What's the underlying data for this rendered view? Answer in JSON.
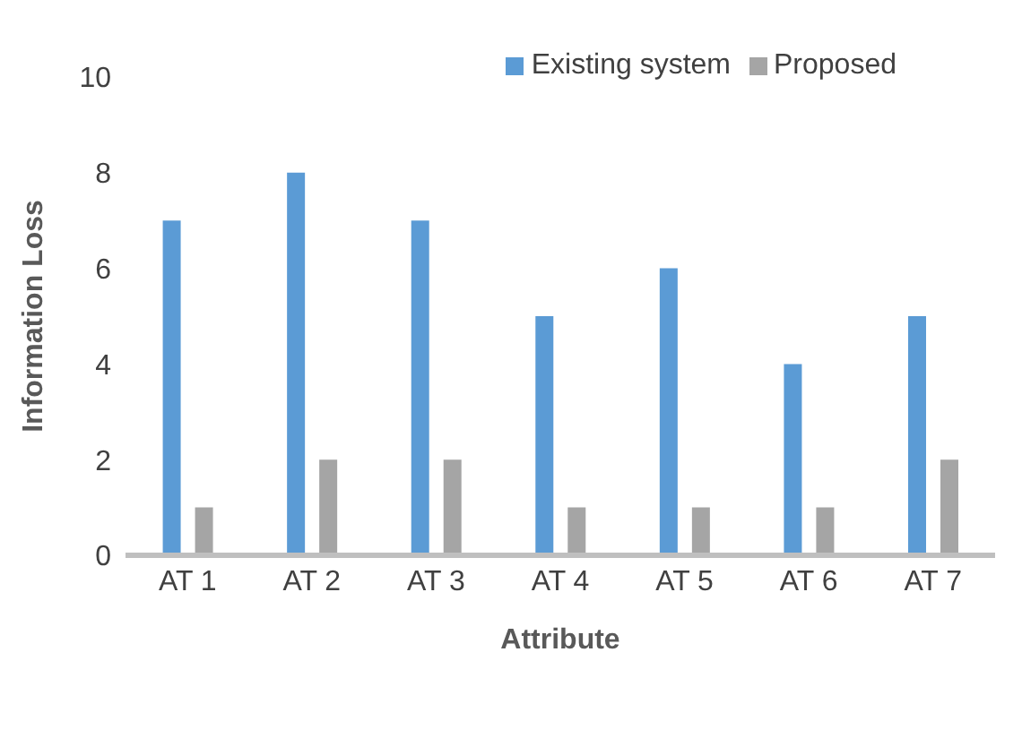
{
  "chart_data": {
    "type": "bar",
    "xlabel": "Attribute",
    "ylabel": "Information Loss",
    "categories": [
      "AT 1",
      "AT 2",
      "AT 3",
      "AT 4",
      "AT 5",
      "AT 6",
      "AT 7"
    ],
    "series": [
      {
        "name": "Existing system",
        "color": "#5b9bd5",
        "values": [
          7,
          8,
          7,
          5,
          6,
          4,
          5
        ]
      },
      {
        "name": "Proposed",
        "color": "#a5a5a5",
        "values": [
          1,
          2,
          2,
          1,
          1,
          1,
          2
        ]
      }
    ],
    "ylim": [
      0,
      10
    ],
    "yticks": [
      0,
      2,
      4,
      6,
      8,
      10
    ],
    "grid": false,
    "legend": "top right"
  }
}
